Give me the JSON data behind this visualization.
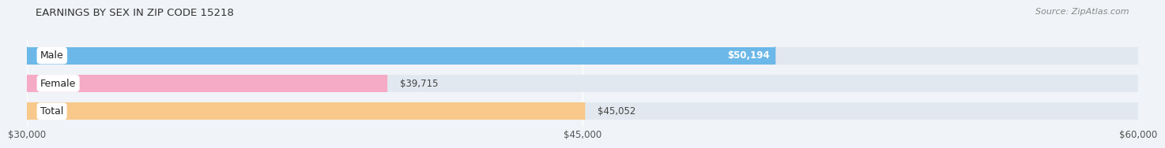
{
  "title": "EARNINGS BY SEX IN ZIP CODE 15218",
  "source": "Source: ZipAtlas.com",
  "categories": [
    "Male",
    "Female",
    "Total"
  ],
  "values": [
    50194,
    39715,
    45052
  ],
  "bar_colors": [
    "#6cb8e8",
    "#f5aac5",
    "#f8c98a"
  ],
  "value_labels": [
    "$50,194",
    "$39,715",
    "$45,052"
  ],
  "xmin": 30000,
  "xmax": 60000,
  "xticks": [
    30000,
    45000,
    60000
  ],
  "xtick_labels": [
    "$30,000",
    "$45,000",
    "$60,000"
  ],
  "background_color": "#f0f3f7",
  "bar_bg_color": "#e2e8ef",
  "title_fontsize": 9.5,
  "source_fontsize": 8,
  "label_fontsize": 9,
  "value_fontsize": 8.5,
  "tick_fontsize": 8.5
}
